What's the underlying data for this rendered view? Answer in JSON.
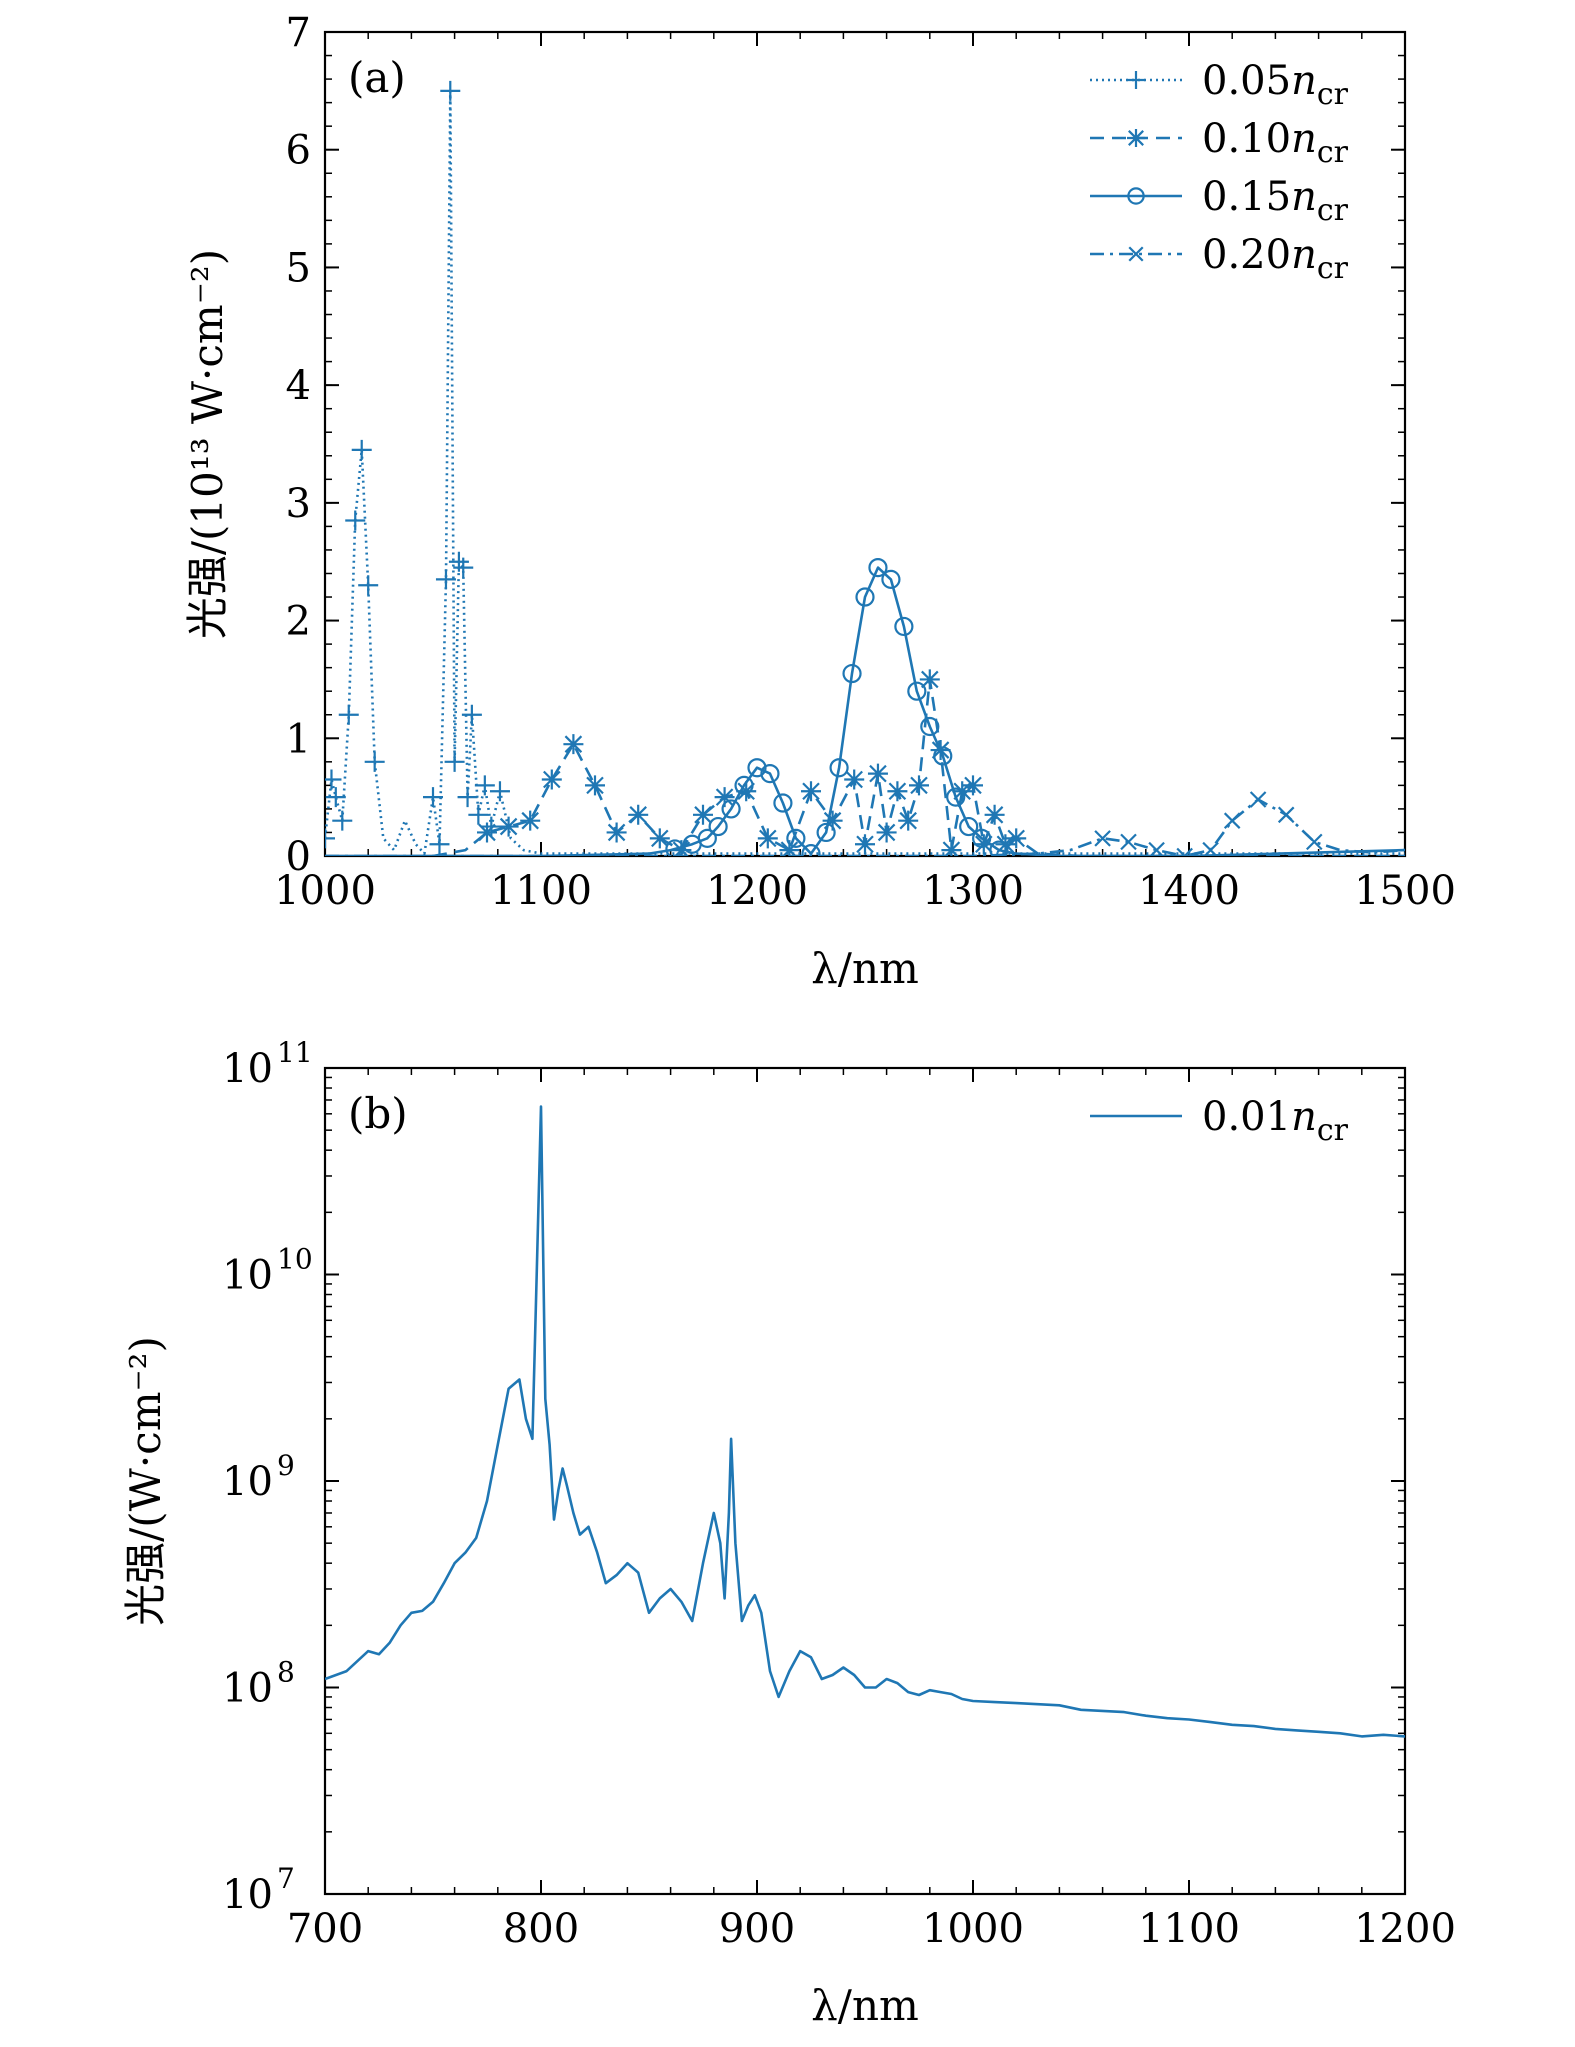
{
  "colors": {
    "series": "#1f77b4",
    "axes": "#000000",
    "background": "#ffffff"
  },
  "chart_data": [
    {
      "panel_tag": "(a)",
      "type": "line",
      "xlabel": "λ/nm",
      "ylabel": "光强/(10¹³ W·cm⁻²)",
      "xlim": [
        1000,
        1500
      ],
      "ylim": [
        0,
        7
      ],
      "y_scale": "linear",
      "x_ticks": [
        1000,
        1100,
        1200,
        1300,
        1400,
        1500
      ],
      "y_ticks": [
        0,
        1,
        2,
        3,
        4,
        5,
        6,
        7
      ],
      "legend_position": "top-right",
      "grid": false,
      "series": [
        {
          "name": "0.05n_cr",
          "name_base": "0.05",
          "name_n": "n",
          "name_sub": "cr",
          "line_style": "dotted",
          "marker": "plus",
          "x": [
            1000,
            1003,
            1005,
            1008,
            1011,
            1014,
            1017,
            1020,
            1023,
            1027,
            1032,
            1037,
            1042,
            1046,
            1050,
            1053,
            1056,
            1058,
            1060,
            1062,
            1064,
            1066,
            1068,
            1071,
            1074,
            1077,
            1081,
            1086,
            1092,
            1100,
            1120,
            1150,
            1200,
            1300,
            1400,
            1500
          ],
          "y": [
            0.15,
            0.65,
            0.5,
            0.3,
            1.2,
            2.85,
            3.45,
            2.3,
            0.8,
            0.15,
            0.05,
            0.3,
            0.1,
            0.02,
            0.5,
            0.1,
            2.35,
            6.5,
            0.8,
            2.5,
            2.45,
            0.5,
            1.2,
            0.35,
            0.6,
            0.25,
            0.55,
            0.15,
            0.05,
            0.02,
            0.02,
            0.02,
            0.02,
            0.02,
            0.02,
            0.02
          ],
          "marker_x": [
            1000,
            1003,
            1005,
            1008,
            1011,
            1014,
            1017,
            1020,
            1023,
            1050,
            1053,
            1056,
            1058,
            1060,
            1062,
            1064,
            1066,
            1068,
            1071,
            1074,
            1077,
            1081
          ]
        },
        {
          "name": "0.10n_cr",
          "name_base": "0.10",
          "name_n": "n",
          "name_sub": "cr",
          "line_style": "dashed",
          "marker": "asterisk",
          "x": [
            1050,
            1065,
            1075,
            1085,
            1095,
            1105,
            1115,
            1125,
            1135,
            1145,
            1155,
            1165,
            1175,
            1185,
            1195,
            1205,
            1215,
            1225,
            1235,
            1245,
            1250,
            1256,
            1260,
            1265,
            1270,
            1275,
            1280,
            1285,
            1290,
            1295,
            1300,
            1305,
            1310,
            1315,
            1320,
            1330,
            1350,
            1400,
            1500
          ],
          "y": [
            0.0,
            0.05,
            0.2,
            0.25,
            0.3,
            0.65,
            0.95,
            0.6,
            0.2,
            0.35,
            0.15,
            0.05,
            0.35,
            0.5,
            0.55,
            0.15,
            0.05,
            0.55,
            0.3,
            0.65,
            0.1,
            0.7,
            0.2,
            0.55,
            0.3,
            0.6,
            1.5,
            0.9,
            0.05,
            0.55,
            0.6,
            0.1,
            0.35,
            0.1,
            0.15,
            0.02,
            0.0,
            0.0,
            0.0
          ],
          "marker_x": [
            1075,
            1085,
            1095,
            1105,
            1115,
            1125,
            1135,
            1145,
            1155,
            1165,
            1175,
            1185,
            1195,
            1205,
            1215,
            1225,
            1235,
            1245,
            1250,
            1256,
            1260,
            1265,
            1270,
            1275,
            1280,
            1285,
            1290,
            1295,
            1300,
            1305,
            1310,
            1315,
            1320
          ]
        },
        {
          "name": "0.15n_cr",
          "name_base": "0.15",
          "name_n": "n",
          "name_sub": "cr",
          "line_style": "solid",
          "marker": "circle",
          "x": [
            1000,
            1100,
            1150,
            1160,
            1170,
            1177,
            1182,
            1188,
            1194,
            1200,
            1206,
            1212,
            1218,
            1225,
            1232,
            1238,
            1244,
            1250,
            1256,
            1262,
            1268,
            1274,
            1280,
            1286,
            1292,
            1298,
            1304,
            1312,
            1320,
            1340,
            1400,
            1500
          ],
          "y": [
            0.0,
            0.0,
            0.02,
            0.05,
            0.1,
            0.15,
            0.25,
            0.4,
            0.6,
            0.75,
            0.7,
            0.45,
            0.15,
            0.02,
            0.2,
            0.75,
            1.55,
            2.2,
            2.45,
            2.35,
            1.95,
            1.4,
            1.1,
            0.85,
            0.5,
            0.25,
            0.15,
            0.05,
            0.02,
            0.0,
            0.0,
            0.05
          ],
          "marker_x": [
            1162,
            1170,
            1177,
            1182,
            1188,
            1194,
            1200,
            1206,
            1212,
            1218,
            1225,
            1232,
            1238,
            1244,
            1250,
            1256,
            1262,
            1268,
            1274,
            1280,
            1286,
            1292,
            1298,
            1304,
            1312
          ]
        },
        {
          "name": "0.20n_cr",
          "name_base": "0.20",
          "name_n": "n",
          "name_sub": "cr",
          "line_style": "dashdot",
          "marker": "x",
          "x": [
            1000,
            1300,
            1330,
            1345,
            1360,
            1372,
            1385,
            1398,
            1410,
            1420,
            1432,
            1445,
            1458,
            1470,
            1485,
            1500
          ],
          "y": [
            0.0,
            0.0,
            0.02,
            0.05,
            0.15,
            0.12,
            0.05,
            0.0,
            0.05,
            0.3,
            0.48,
            0.35,
            0.12,
            0.05,
            0.03,
            0.05
          ],
          "marker_x": [
            1360,
            1372,
            1385,
            1398,
            1410,
            1420,
            1432,
            1445,
            1458
          ]
        }
      ]
    },
    {
      "panel_tag": "(b)",
      "type": "line",
      "xlabel": "λ/nm",
      "ylabel": "光强/(W·cm⁻²)",
      "xlim": [
        700,
        1200
      ],
      "ylim": [
        10000000,
        100000000000
      ],
      "y_scale": "log",
      "x_ticks": [
        700,
        800,
        900,
        1000,
        1100,
        1200
      ],
      "y_tick_exponents": [
        7,
        8,
        9,
        10,
        11
      ],
      "legend_position": "top-right",
      "grid": false,
      "series": [
        {
          "name": "0.01n_cr",
          "name_base": "0.01",
          "name_n": "n",
          "name_sub": "cr",
          "line_style": "solid",
          "marker": "none",
          "x": [
            700,
            710,
            720,
            725,
            730,
            735,
            740,
            745,
            750,
            755,
            760,
            765,
            770,
            775,
            780,
            785,
            790,
            793,
            796,
            798,
            800,
            802,
            804,
            806,
            808,
            810,
            812,
            815,
            818,
            822,
            826,
            830,
            835,
            840,
            845,
            850,
            855,
            860,
            865,
            870,
            875,
            880,
            883,
            885,
            887,
            888,
            890,
            893,
            896,
            899,
            902,
            906,
            910,
            915,
            920,
            925,
            930,
            935,
            940,
            945,
            950,
            955,
            960,
            965,
            970,
            975,
            980,
            985,
            990,
            995,
            1000,
            1010,
            1020,
            1030,
            1040,
            1050,
            1060,
            1070,
            1080,
            1090,
            1100,
            1110,
            1120,
            1130,
            1140,
            1150,
            1160,
            1170,
            1180,
            1190,
            1200
          ],
          "y": [
            110000000,
            120000000,
            150000000,
            145000000,
            165000000,
            200000000,
            230000000,
            235000000,
            260000000,
            320000000,
            400000000,
            450000000,
            530000000,
            800000000,
            1500000000,
            2800000000,
            3100000000,
            2000000000,
            1600000000,
            10000000000,
            65000000000,
            2500000000,
            1500000000,
            650000000,
            900000000,
            1150000000,
            950000000,
            700000000,
            550000000,
            600000000,
            450000000,
            320000000,
            350000000,
            400000000,
            360000000,
            230000000,
            270000000,
            300000000,
            260000000,
            210000000,
            400000000,
            700000000,
            500000000,
            270000000,
            700000000,
            1600000000,
            500000000,
            210000000,
            250000000,
            280000000,
            230000000,
            120000000,
            90000000,
            120000000,
            150000000,
            140000000,
            110000000,
            115000000,
            125000000,
            115000000,
            100000000,
            100000000,
            110000000,
            105000000,
            95000000,
            92000000,
            97000000,
            95000000,
            93000000,
            88000000,
            86000000,
            85000000,
            84000000,
            83000000,
            82000000,
            78000000,
            77000000,
            76000000,
            73000000,
            71000000,
            70000000,
            68000000,
            66000000,
            65000000,
            63000000,
            62000000,
            61000000,
            60000000,
            58000000,
            59000000,
            58000000
          ]
        }
      ]
    }
  ]
}
